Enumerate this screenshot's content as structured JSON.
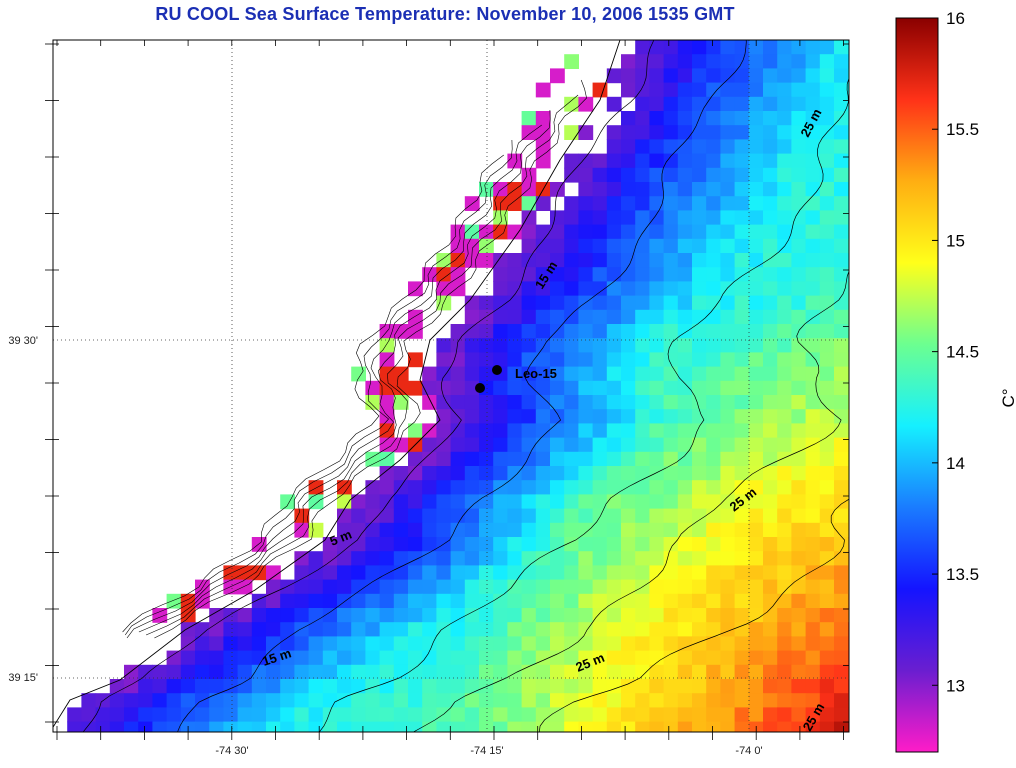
{
  "title": "RU COOL  Sea Surface Temperature:  November 10, 2006 1535 GMT",
  "chart_data": {
    "type": "heatmap",
    "quantity": "Sea Surface Temperature",
    "units": "C°",
    "colorbar": {
      "min": 12.7,
      "max": 16.0,
      "ticks": [
        "13",
        "13.5",
        "14",
        "14.5",
        "15",
        "15.5",
        "16"
      ],
      "tick_values": [
        13,
        13.5,
        14,
        14.5,
        15,
        15.5,
        16
      ],
      "label": "C°"
    },
    "x_ticks": [
      "-74 30'",
      "-74 15'",
      "-74 0'"
    ],
    "y_ticks": [
      "39 30'",
      "39 15'"
    ],
    "contour_labels": [
      "25 m",
      "15 m",
      "5 m",
      "25 m",
      "15 m",
      "25 m",
      "25 m"
    ],
    "station": {
      "name": "Leo-15"
    },
    "temperature_bands": [
      {
        "region": "nearshore lagoon / bay pixels",
        "value": 12.8
      },
      {
        "region": "along the coast (dark blue/purple band)",
        "value": 13.1
      },
      {
        "region": "inner shelf",
        "value": 13.6
      },
      {
        "region": "mid shelf",
        "value": 14.2
      },
      {
        "region": "outer shelf (north-east)",
        "value": 14.4
      },
      {
        "region": "south-east offshore",
        "value": 15.0
      },
      {
        "region": "warmest offshore south-east",
        "value": 15.2
      }
    ]
  },
  "colors": {
    "title": "#1b2fb4",
    "land": "#ffffff",
    "colormap": [
      "#ff1cc8",
      "#6a1ed0",
      "#1414ff",
      "#1a7cff",
      "#15f0ff",
      "#6cff90",
      "#ffff1a",
      "#ffae12",
      "#ff3218",
      "#8a0000"
    ]
  }
}
